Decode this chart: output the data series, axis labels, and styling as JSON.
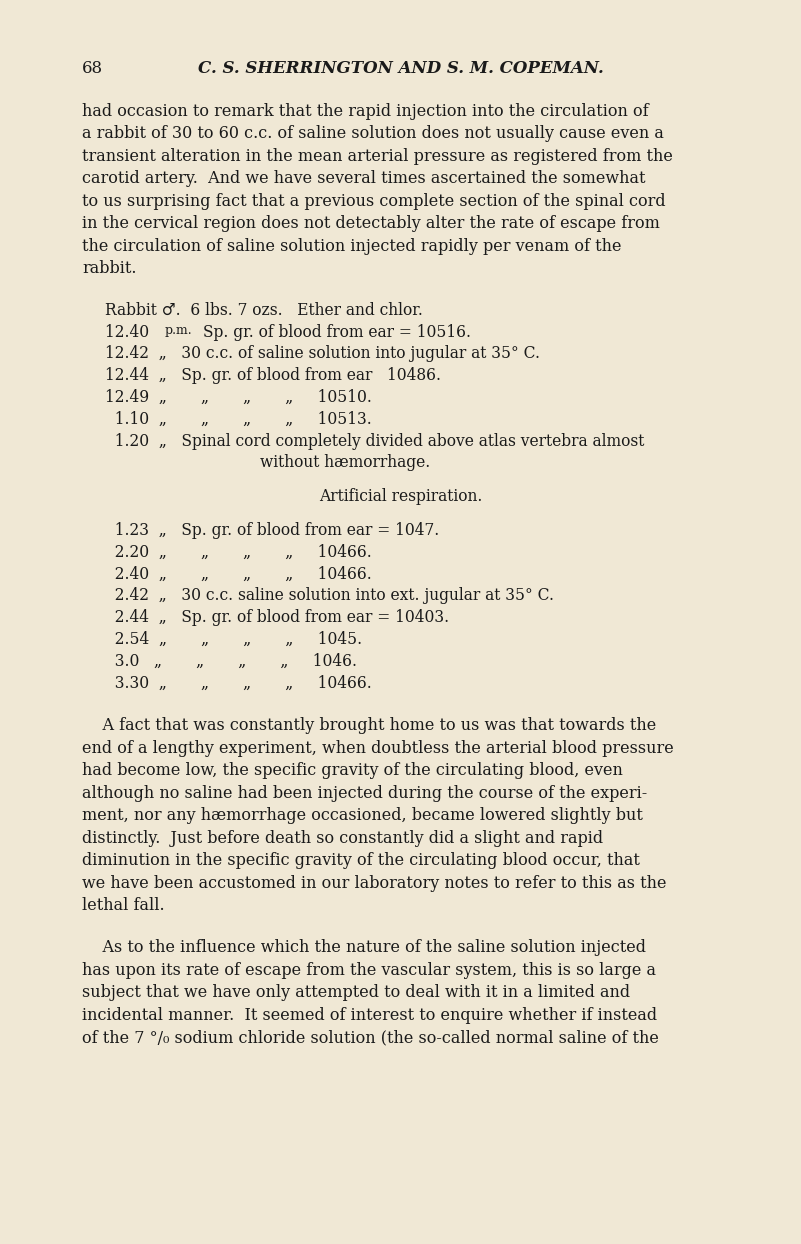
{
  "bg_color": "#f0e8d5",
  "text_color": "#1a1a1a",
  "page_width": 8.01,
  "page_height": 12.44,
  "dpi": 100,
  "paragraph1_lines": [
    "had occasion to remark that the rapid injection into the circulation of",
    "a rabbit of 30 to 60 c.c. of saline solution does not usually cause even a",
    "transient alteration in the mean arterial pressure as registered from the",
    "carotid artery.  And we have several times ascertained the somewhat",
    "to us surprising fact that a previous complete section of the spinal cord",
    "in the cervical region does not detectably alter the rate of escape from",
    "the circulation of saline solution injected rapidly per venam of the",
    "rabbit."
  ],
  "paragraph2_lines": [
    "    A fact that was constantly brought home to us was that towards the",
    "end of a lengthy experiment, when doubtless the arterial blood pressure",
    "had become low, the specific gravity of the circulating blood, even",
    "although no saline had been injected during the course of the experi-",
    "ment, nor any hæmorrhage occasioned, became lowered slightly but",
    "distinctly.  Just before death so constantly did a slight and rapid",
    "diminution in the specific gravity of the circulating blood occur, that",
    "we have been accustomed in our laboratory notes to refer to this as the",
    "lethal fall."
  ],
  "paragraph3_lines": [
    "    As to the influence which the nature of the saline solution injected",
    "has upon its rate of escape from the vascular system, this is so large a",
    "subject that we have only attempted to deal with it in a limited and",
    "incidental manner.  It seemed of interest to enquire whether if instead",
    "of the 7 °/₀ sodium chloride solution (the so-called normal saline of the"
  ]
}
